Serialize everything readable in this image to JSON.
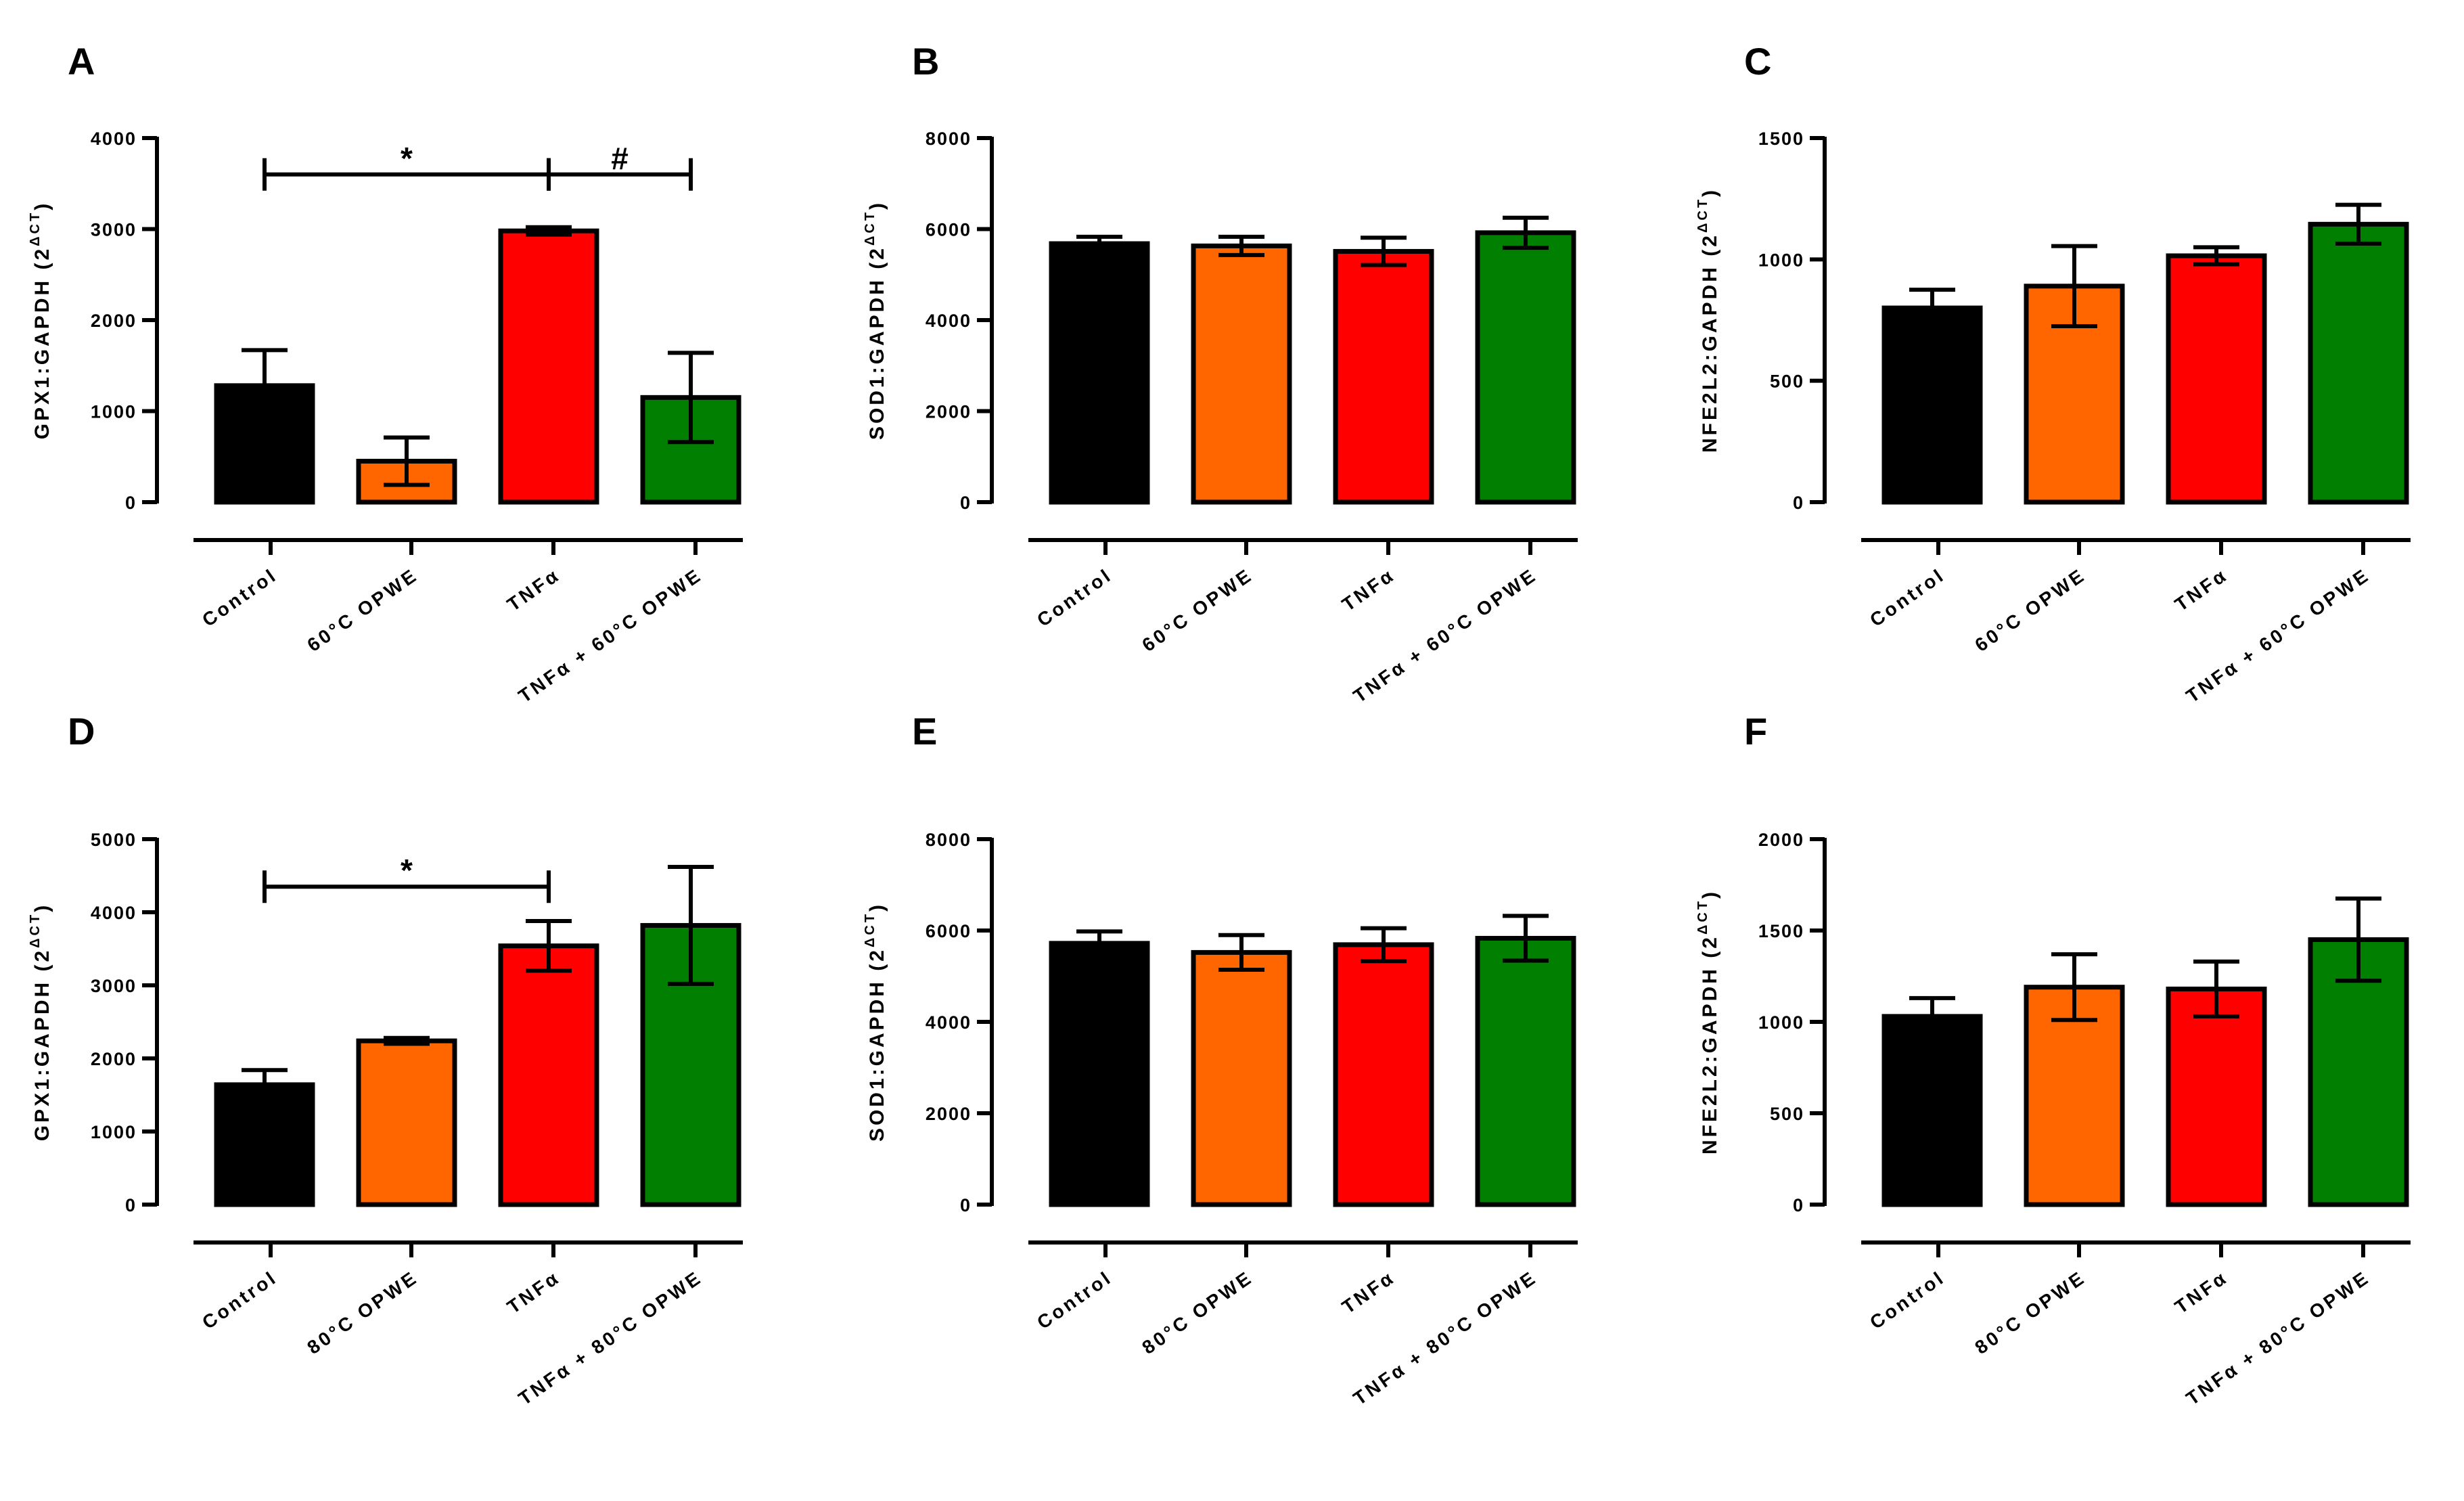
{
  "chart_data": [
    {
      "panel": "A",
      "type": "bar",
      "ylabel": "GPX1:GAPDH (2",
      "ylabel_sup": "ΔCT",
      "ylabel_close": ")",
      "ylim": [
        0,
        4000
      ],
      "yticks": [
        0,
        1000,
        2000,
        3000,
        4000
      ],
      "categories": [
        "Control",
        "60°C OPWE",
        "TNFα",
        "TNFα + 60°C OPWE"
      ],
      "values": [
        1280,
        450,
        2980,
        1150
      ],
      "errors": [
        390,
        260,
        40,
        490
      ],
      "colors": [
        "#000000",
        "#ff6600",
        "#ff0000",
        "#007f00"
      ],
      "significance": [
        {
          "from": 0,
          "to": 2,
          "label": "*",
          "y": 3600
        },
        {
          "from": 2,
          "to": 3,
          "label": "#",
          "y": 3600
        }
      ]
    },
    {
      "panel": "B",
      "type": "bar",
      "ylabel": "SOD1:GAPDH (2",
      "ylabel_sup": "ΔCT",
      "ylabel_close": ")",
      "ylim": [
        0,
        8000
      ],
      "yticks": [
        0,
        2000,
        4000,
        6000,
        8000
      ],
      "categories": [
        "Control",
        "60°C OPWE",
        "TNFα",
        "TNFα + 60°C OPWE"
      ],
      "values": [
        5680,
        5630,
        5510,
        5920
      ],
      "errors": [
        150,
        200,
        300,
        330
      ],
      "colors": [
        "#000000",
        "#ff6600",
        "#ff0000",
        "#007f00"
      ],
      "significance": []
    },
    {
      "panel": "C",
      "type": "bar",
      "ylabel": "NFE2L2:GAPDH (2",
      "ylabel_sup": "ΔCT",
      "ylabel_close": ")",
      "ylim": [
        0,
        1500
      ],
      "yticks": [
        0,
        500,
        1000,
        1500
      ],
      "categories": [
        "Control",
        "60°C OPWE",
        "TNFα",
        "TNFα + 60°C OPWE"
      ],
      "values": [
        800,
        890,
        1015,
        1145
      ],
      "errors": [
        75,
        165,
        35,
        80
      ],
      "colors": [
        "#000000",
        "#ff6600",
        "#ff0000",
        "#007f00"
      ],
      "significance": []
    },
    {
      "panel": "D",
      "type": "bar",
      "ylabel": "GPX1:GAPDH (2",
      "ylabel_sup": "ΔCT",
      "ylabel_close": ")",
      "ylim": [
        0,
        5000
      ],
      "yticks": [
        0,
        1000,
        2000,
        3000,
        4000,
        5000
      ],
      "categories": [
        "Control",
        "80°C OPWE",
        "TNFα",
        "TNFα + 80°C OPWE"
      ],
      "values": [
        1640,
        2240,
        3540,
        3820
      ],
      "errors": [
        200,
        40,
        340,
        800
      ],
      "colors": [
        "#000000",
        "#ff6600",
        "#ff0000",
        "#007f00"
      ],
      "significance": [
        {
          "from": 0,
          "to": 2,
          "label": "*",
          "y": 4350
        }
      ]
    },
    {
      "panel": "E",
      "type": "bar",
      "ylabel": "SOD1:GAPDH (2",
      "ylabel_sup": "ΔCT",
      "ylabel_close": ")",
      "ylim": [
        0,
        8000
      ],
      "yticks": [
        0,
        2000,
        4000,
        6000,
        8000
      ],
      "categories": [
        "Control",
        "80°C OPWE",
        "TNFα",
        "TNFα + 80°C OPWE"
      ],
      "values": [
        5720,
        5520,
        5690,
        5830
      ],
      "errors": [
        260,
        380,
        360,
        490
      ],
      "colors": [
        "#000000",
        "#ff6600",
        "#ff0000",
        "#007f00"
      ],
      "significance": []
    },
    {
      "panel": "F",
      "type": "bar",
      "ylabel": "NFE2L2:GAPDH (2",
      "ylabel_sup": "ΔCT",
      "ylabel_close": ")",
      "ylim": [
        0,
        2000
      ],
      "yticks": [
        0,
        500,
        1000,
        1500,
        2000
      ],
      "categories": [
        "Control",
        "80°C OPWE",
        "TNFα",
        "TNFα + 80°C OPWE"
      ],
      "values": [
        1030,
        1190,
        1180,
        1450
      ],
      "errors": [
        100,
        180,
        150,
        225
      ],
      "colors": [
        "#000000",
        "#ff6600",
        "#ff0000",
        "#007f00"
      ],
      "significance": []
    }
  ]
}
